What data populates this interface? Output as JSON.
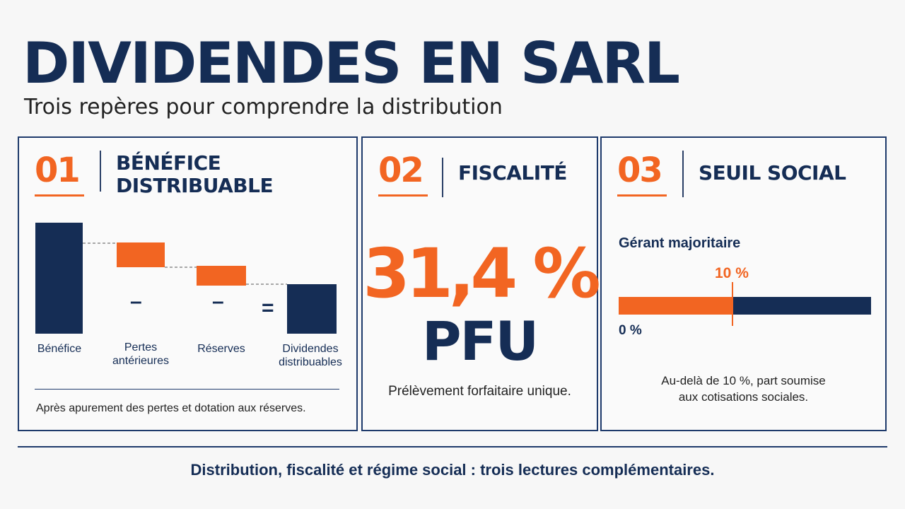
{
  "header": {
    "title": "DIVIDENDES EN SARL",
    "subtitle": "Trois repères pour comprendre la distribution"
  },
  "cards": [
    {
      "number": "01",
      "heading": "BÉNÉFICE\nDISTRIBUABLE",
      "waterfall": {
        "labels": [
          "Bénéfice",
          "Pertes\nantérieures",
          "Réserves",
          "Dividendes\ndistribuables"
        ],
        "operators": [
          "–",
          "–",
          "="
        ]
      },
      "note": "Après apurement des pertes et dotation aux réserves."
    },
    {
      "number": "02",
      "heading": "FISCALITÉ",
      "big_value": "31,4 %",
      "acronym": "PFU",
      "description": "Prélèvement forfaitaire unique."
    },
    {
      "number": "03",
      "heading": "SEUIL SOCIAL",
      "subject": "Gérant majoritaire",
      "threshold_label": "10 %",
      "threshold_fraction": 0.45,
      "start_label": "0 %",
      "description": "Au-delà de 10 %, part soumise\naux cotisations sociales."
    }
  ],
  "footer": "Distribution, fiscalité et régime social : trois lectures complémentaires.",
  "colors": {
    "navy": "#152d55",
    "orange": "#f26522",
    "background": "#f7f7f7"
  }
}
